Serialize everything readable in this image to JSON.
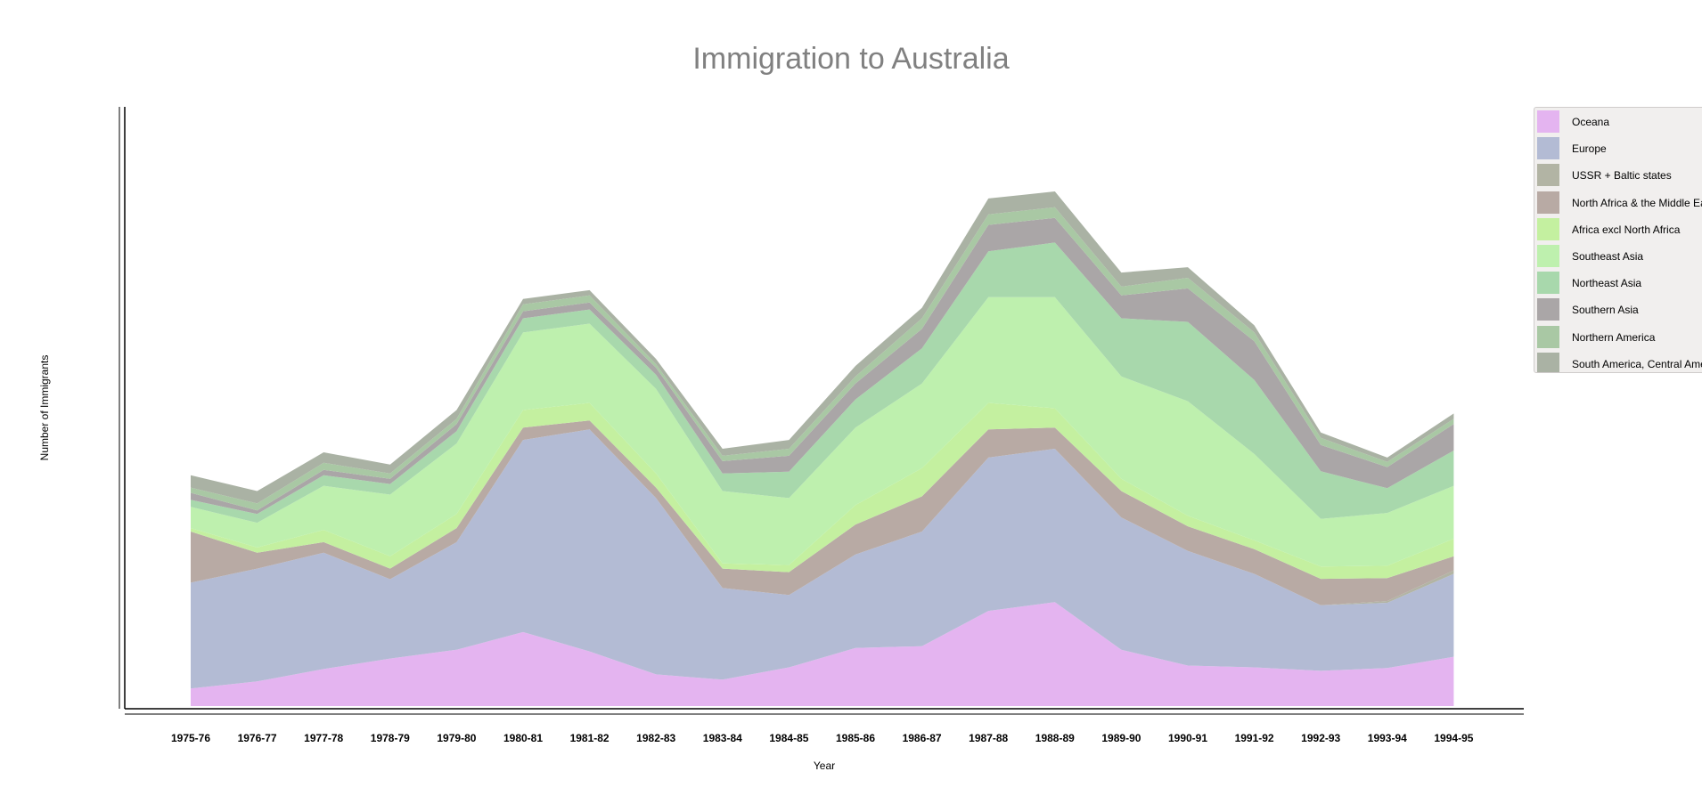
{
  "chart_data": {
    "type": "area",
    "stacked": true,
    "title": "Immigration to Australia",
    "xlabel": "Year",
    "ylabel": "Number of Immigrants",
    "categories": [
      "1975-76",
      "1976-77",
      "1977-78",
      "1978-79",
      "1979-80",
      "1980-81",
      "1981-82",
      "1982-83",
      "1983-84",
      "1984-85",
      "1985-86",
      "1986-87",
      "1987-88",
      "1988-89",
      "1989-90",
      "1990-91",
      "1991-92",
      "1992-93",
      "1993-94",
      "1994-95"
    ],
    "ylim": [
      0,
      170000
    ],
    "grid": false,
    "legend_position": "right",
    "series": [
      {
        "name": "Oceana",
        "color": "#e4b4f0",
        "values": [
          5000,
          7000,
          10500,
          13500,
          16000,
          21000,
          15500,
          9000,
          7500,
          11000,
          16500,
          17000,
          27000,
          29500,
          16000,
          11500,
          11000,
          10000,
          10800,
          14000
        ]
      },
      {
        "name": "Europe",
        "color": "#b3bbd4",
        "values": [
          30000,
          32000,
          33000,
          22500,
          30500,
          54500,
          63000,
          50000,
          26000,
          20500,
          26500,
          32500,
          43500,
          43500,
          37500,
          32500,
          26500,
          18600,
          18500,
          23500
        ]
      },
      {
        "name": "USSR + Baltic states",
        "color": "#b2b4a4",
        "values": [
          0,
          0,
          0,
          0,
          0,
          0,
          0,
          0,
          0,
          0,
          0,
          0,
          0,
          0,
          0,
          0,
          0,
          0,
          500,
          1000
        ]
      },
      {
        "name": "North Africa & the Middle East",
        "color": "#b8aaa4",
        "values": [
          14500,
          4500,
          3000,
          3000,
          4000,
          3500,
          2500,
          3000,
          5500,
          6500,
          8500,
          10000,
          8000,
          6000,
          7500,
          7000,
          7000,
          7500,
          6500,
          4000
        ]
      },
      {
        "name": "Africa excl North Africa",
        "color": "#c4f0a0",
        "values": [
          1000,
          1500,
          3500,
          3500,
          4000,
          5000,
          5000,
          4000,
          1500,
          2000,
          5500,
          8000,
          7500,
          5500,
          3500,
          3000,
          2500,
          3500,
          3500,
          5000
        ]
      },
      {
        "name": "Southeast Asia",
        "color": "#bef0ae",
        "values": [
          6000,
          7000,
          12500,
          17500,
          20000,
          22000,
          22500,
          24000,
          20500,
          19000,
          22000,
          24000,
          30000,
          31500,
          29000,
          32500,
          24500,
          13500,
          15000,
          15000
        ]
      },
      {
        "name": "Northeast Asia",
        "color": "#a8d8ac",
        "values": [
          2000,
          2500,
          3000,
          3000,
          3500,
          4000,
          4000,
          4000,
          5000,
          7500,
          8000,
          10000,
          13000,
          15500,
          16500,
          22500,
          21000,
          13500,
          7000,
          10000
        ]
      },
      {
        "name": "Southern Asia",
        "color": "#aaa6a7",
        "values": [
          2000,
          1000,
          1500,
          1500,
          2000,
          2000,
          2000,
          2000,
          3500,
          4500,
          4500,
          5500,
          7500,
          7000,
          6500,
          9500,
          11000,
          7500,
          6000,
          7500
        ]
      },
      {
        "name": "Northern America",
        "color": "#a9c8a4",
        "values": [
          1500,
          2000,
          2000,
          1500,
          1500,
          2000,
          2000,
          1000,
          1500,
          2000,
          2000,
          3000,
          3000,
          3000,
          2500,
          3000,
          2500,
          2000,
          1500,
          1500
        ]
      },
      {
        "name": "South America, Central America and the Caribbean",
        "color": "#aab2a4",
        "values": [
          3500,
          3500,
          3000,
          2500,
          2500,
          1500,
          1500,
          1500,
          2000,
          2500,
          3000,
          3000,
          4500,
          4500,
          4000,
          3000,
          2000,
          1500,
          1200,
          1500
        ]
      }
    ]
  }
}
